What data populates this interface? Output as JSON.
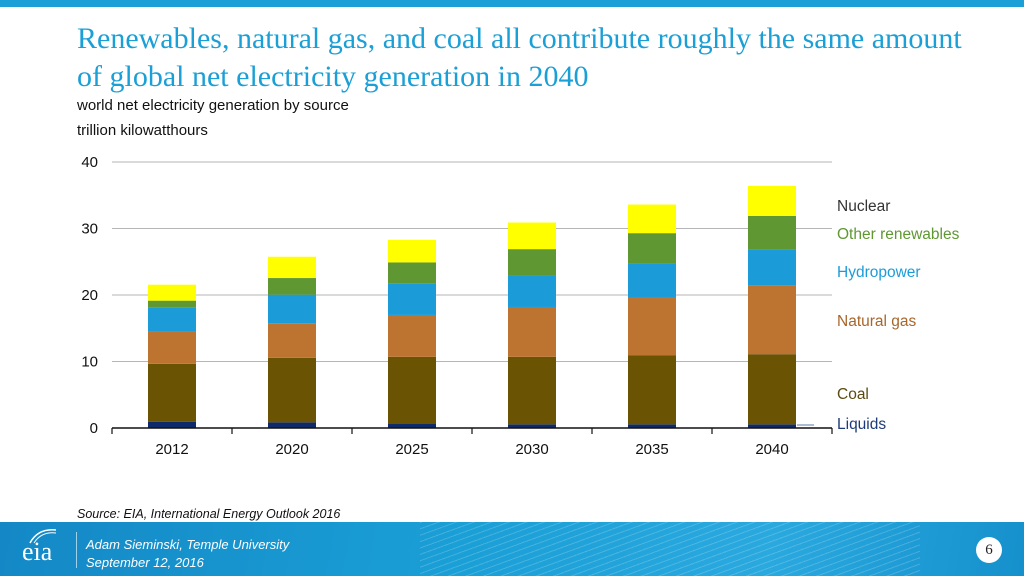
{
  "slide": {
    "title": "Renewables, natural gas, and coal all contribute roughly the same amount of global net electricity generation in 2040",
    "subtitle": "world net electricity generation by source",
    "units": "trillion kilowatthours",
    "source": "Source:  EIA, International Energy Outlook 2016",
    "footer": {
      "logo": "eia",
      "presenter": "Adam Sieminski, Temple University",
      "date": "September 12, 2016",
      "page_number": "6"
    },
    "colors": {
      "accent": "#1a9fd6"
    }
  },
  "chart_data": {
    "type": "bar",
    "stacked": true,
    "title": "world net electricity generation by source",
    "xlabel": "",
    "ylabel": "trillion kilowatthours",
    "ylim": [
      0,
      40
    ],
    "yticks": [
      0,
      10,
      20,
      30,
      40
    ],
    "ytick_labels": [
      "0",
      "10",
      "20",
      "30",
      "40"
    ],
    "grid": true,
    "legend_placement": "right",
    "categories": [
      "2012",
      "2020",
      "2025",
      "2030",
      "2035",
      "2040"
    ],
    "series": [
      {
        "name": "Liquids",
        "color": "#0e2a6b",
        "label_color": "#1f3a78",
        "values": [
          0.95,
          0.85,
          0.6,
          0.55,
          0.55,
          0.55
        ]
      },
      {
        "name": "Coal",
        "color": "#6b5304",
        "label_color": "#5a4a10",
        "values": [
          8.7,
          9.7,
          10.1,
          10.15,
          10.35,
          10.55
        ]
      },
      {
        "name": "Natural gas",
        "color": "#bd7430",
        "label_color": "#a8662a",
        "values": [
          4.8,
          5.2,
          6.3,
          7.5,
          8.8,
          10.3
        ]
      },
      {
        "name": "Hydropower",
        "color": "#1b9cd9",
        "label_color": "#1b9cd9",
        "values": [
          3.7,
          4.3,
          4.7,
          4.8,
          5.1,
          5.5
        ]
      },
      {
        "name": "Other renewables",
        "color": "#5f9732",
        "label_color": "#5f9732",
        "values": [
          1.0,
          2.5,
          3.2,
          3.9,
          4.5,
          5.0
        ]
      },
      {
        "name": "Nuclear",
        "color": "#ffff00",
        "label_color": "#333333",
        "values": [
          2.4,
          3.2,
          3.4,
          4.0,
          4.3,
          4.5
        ]
      }
    ]
  }
}
